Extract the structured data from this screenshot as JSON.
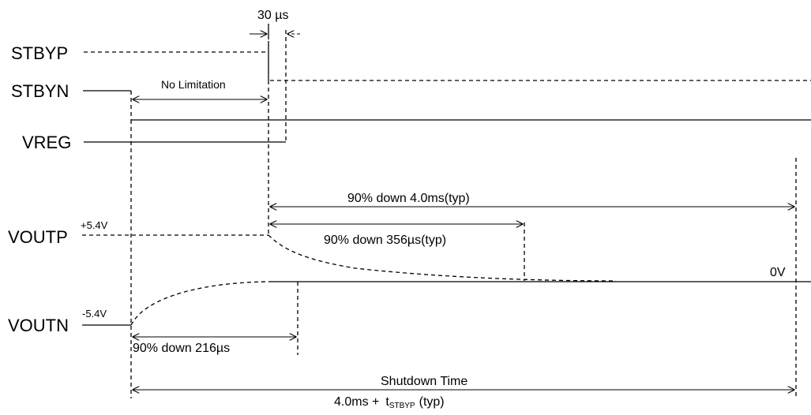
{
  "signals": {
    "stbyp": "STBYP",
    "stbyn": "STBYN",
    "vreg": "VREG",
    "voutp": "VOUTP",
    "voutn": "VOUTN"
  },
  "levels": {
    "voutp_level": "+5.4V",
    "voutn_level": "-5.4V",
    "zero": "0V"
  },
  "annotations": {
    "pulse_width": "30 µs",
    "no_limitation": "No Limitation",
    "voutp_4ms": "90% down 4.0ms(typ)",
    "voutp_356us": "90% down 356µs(typ)",
    "voutn_216us": "90% down 216µs",
    "shutdown_title": "Shutdown Time",
    "shutdown_value_prefix": "4.0ms +",
    "shutdown_t": "t",
    "shutdown_sub": "STBYP",
    "shutdown_suffix": "(typ)"
  }
}
